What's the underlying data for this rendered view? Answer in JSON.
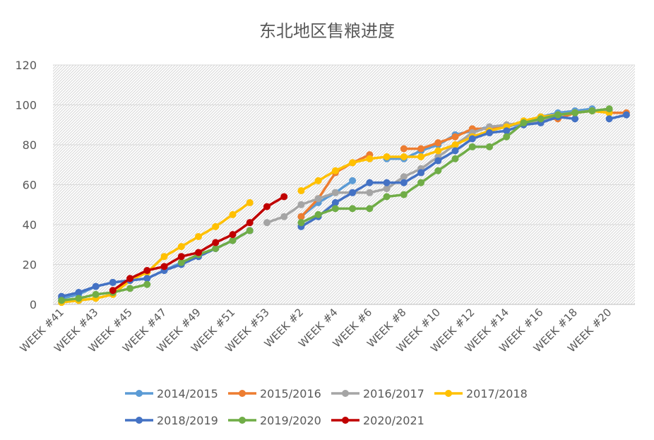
{
  "chart_data": {
    "type": "line",
    "title": "东北地区售粮进度",
    "xlabel": "",
    "ylabel": "",
    "ylim": [
      0,
      120
    ],
    "yticks": [
      0,
      20,
      40,
      60,
      80,
      100,
      120
    ],
    "grid": true,
    "legend_position": "bottom",
    "weeks": [
      "WEEK #41",
      "WEEK #42",
      "WEEK #43",
      "WEEK #44",
      "WEEK #45",
      "WEEK #46",
      "WEEK #47",
      "WEEK #48",
      "WEEK #49",
      "WEEK #50",
      "WEEK #51",
      "WEEK #52",
      "WEEK #53",
      "WEEK #1",
      "WEEK #2",
      "WEEK #3",
      "WEEK #4",
      "WEEK #5",
      "WEEK #6",
      "WEEK #7",
      "WEEK #8",
      "WEEK #9",
      "WEEK #10",
      "WEEK #11",
      "WEEK #12",
      "WEEK #13",
      "WEEK #14",
      "WEEK #15",
      "WEEK #16",
      "WEEK #17",
      "WEEK #18",
      "WEEK #19",
      "WEEK #20",
      "WEEK #21"
    ],
    "tick_labels": [
      "WEEK #41",
      "WEEK #43",
      "WEEK #45",
      "WEEK #47",
      "WEEK #49",
      "WEEK #51",
      "WEEK #53",
      "WEEK #2",
      "WEEK #4",
      "WEEK #6",
      "WEEK #8",
      "WEEK #10",
      "WEEK #12",
      "WEEK #14",
      "WEEK #16",
      "WEEK #18",
      "WEEK #20"
    ],
    "series": [
      {
        "name": "2014/2015",
        "color": "#5b9bd5",
        "values": [
          3,
          5,
          9,
          11,
          12,
          13,
          17,
          21,
          24,
          28,
          32,
          37,
          null,
          null,
          44,
          51,
          56,
          62,
          null,
          73,
          73,
          77,
          80,
          85,
          87,
          89,
          89,
          91,
          94,
          96,
          97,
          98,
          null,
          null
        ]
      },
      {
        "name": "2015/2016",
        "color": "#ed7d31",
        "values": [
          null,
          null,
          null,
          null,
          null,
          null,
          null,
          null,
          null,
          null,
          null,
          null,
          null,
          null,
          44,
          53,
          66,
          71,
          75,
          null,
          78,
          78,
          81,
          84,
          88,
          88,
          90,
          91,
          93,
          93,
          96,
          97,
          96,
          96
        ]
      },
      {
        "name": "2016/2017",
        "color": "#a5a5a5",
        "values": [
          null,
          null,
          null,
          null,
          null,
          null,
          null,
          null,
          null,
          null,
          null,
          null,
          41,
          44,
          50,
          53,
          56,
          56,
          56,
          58,
          64,
          68,
          74,
          80,
          86,
          89,
          90,
          91,
          92,
          95,
          96,
          97,
          97,
          null
        ]
      },
      {
        "name": "2017/2018",
        "color": "#ffc000",
        "values": [
          1,
          2,
          3,
          5,
          12,
          16,
          24,
          29,
          34,
          39,
          45,
          51,
          null,
          null,
          57,
          62,
          67,
          71,
          73,
          74,
          74,
          74,
          77,
          80,
          84,
          87,
          89,
          92,
          94,
          95,
          96,
          97,
          96,
          null
        ]
      },
      {
        "name": "2018/2019",
        "color": "#4472c4",
        "values": [
          4,
          6,
          9,
          11,
          12,
          13,
          17,
          20,
          24,
          28,
          32,
          37,
          null,
          null,
          39,
          44,
          51,
          56,
          61,
          61,
          61,
          66,
          72,
          77,
          83,
          86,
          87,
          90,
          91,
          94,
          93,
          null,
          93,
          95
        ]
      },
      {
        "name": "2019/2020",
        "color": "#70ad47",
        "values": [
          2,
          3,
          5,
          6,
          8,
          10,
          null,
          21,
          25,
          28,
          32,
          37,
          null,
          null,
          41,
          45,
          48,
          48,
          48,
          54,
          55,
          61,
          67,
          73,
          79,
          79,
          84,
          91,
          93,
          95,
          96,
          97,
          98,
          null
        ]
      },
      {
        "name": "2020/2021",
        "color": "#c00000",
        "values": [
          null,
          null,
          null,
          7,
          13,
          17,
          19,
          24,
          26,
          31,
          35,
          41,
          49,
          54,
          null,
          null,
          null,
          null,
          null,
          null,
          null,
          null,
          null,
          null,
          null,
          null,
          null,
          null,
          null,
          null,
          null,
          null,
          null,
          null
        ]
      }
    ]
  }
}
